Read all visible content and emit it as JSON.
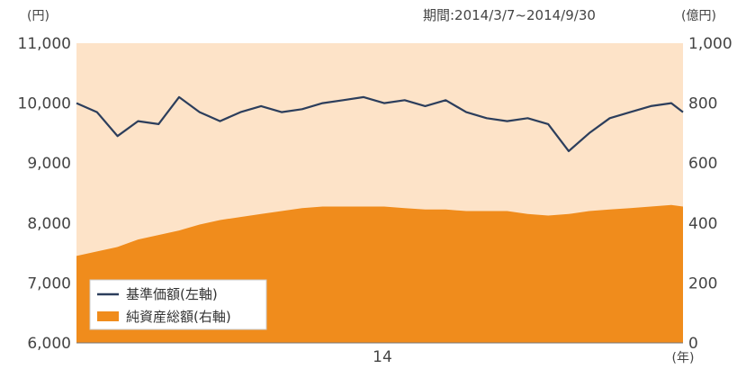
{
  "chart_data": {
    "type": "area",
    "period_label": "期間:2014/3/7~2014/9/30",
    "left_unit": "(円)",
    "right_unit": "(億円)",
    "x_unit": "(年)",
    "x_ticks": [
      "14"
    ],
    "left_axis": {
      "ticks": [
        "6,000",
        "7,000",
        "8,000",
        "9,000",
        "10,000",
        "11,000"
      ],
      "ylim": [
        6000,
        11000
      ]
    },
    "right_axis": {
      "ticks": [
        "0",
        "200",
        "400",
        "600",
        "800",
        "1,000"
      ],
      "ylim": [
        0,
        1000
      ]
    },
    "x_range": [
      "2014-03-07",
      "2014-09-30"
    ],
    "x": [
      "2014-03-07",
      "2014-03-14",
      "2014-03-21",
      "2014-03-28",
      "2014-04-04",
      "2014-04-11",
      "2014-04-18",
      "2014-04-25",
      "2014-05-02",
      "2014-05-09",
      "2014-05-16",
      "2014-05-23",
      "2014-05-30",
      "2014-06-06",
      "2014-06-13",
      "2014-06-20",
      "2014-06-27",
      "2014-07-04",
      "2014-07-11",
      "2014-07-18",
      "2014-07-25",
      "2014-08-01",
      "2014-08-08",
      "2014-08-15",
      "2014-08-22",
      "2014-08-29",
      "2014-09-05",
      "2014-09-12",
      "2014-09-19",
      "2014-09-26",
      "2014-09-30"
    ],
    "series": [
      {
        "name": "基準価額(左軸)",
        "axis": "left",
        "kind": "line",
        "color": "#2c3e5c",
        "values": [
          10000,
          9850,
          9450,
          9700,
          9650,
          10100,
          9850,
          9700,
          9850,
          9950,
          9850,
          9900,
          10000,
          10050,
          10100,
          10000,
          10050,
          9950,
          10050,
          9850,
          9750,
          9700,
          9750,
          9650,
          9200,
          9500,
          9750,
          9850,
          9950,
          10000,
          9850
        ]
      },
      {
        "name": "純資産総額(右軸)",
        "axis": "right",
        "kind": "area",
        "color": "#f08c1c",
        "values": [
          290,
          305,
          320,
          345,
          360,
          375,
          395,
          410,
          420,
          430,
          440,
          450,
          455,
          455,
          455,
          455,
          450,
          445,
          445,
          440,
          440,
          440,
          430,
          425,
          430,
          440,
          445,
          450,
          455,
          460,
          455
        ]
      }
    ],
    "plot_background": "#fde3c8",
    "legend_position": "bottom-left"
  }
}
